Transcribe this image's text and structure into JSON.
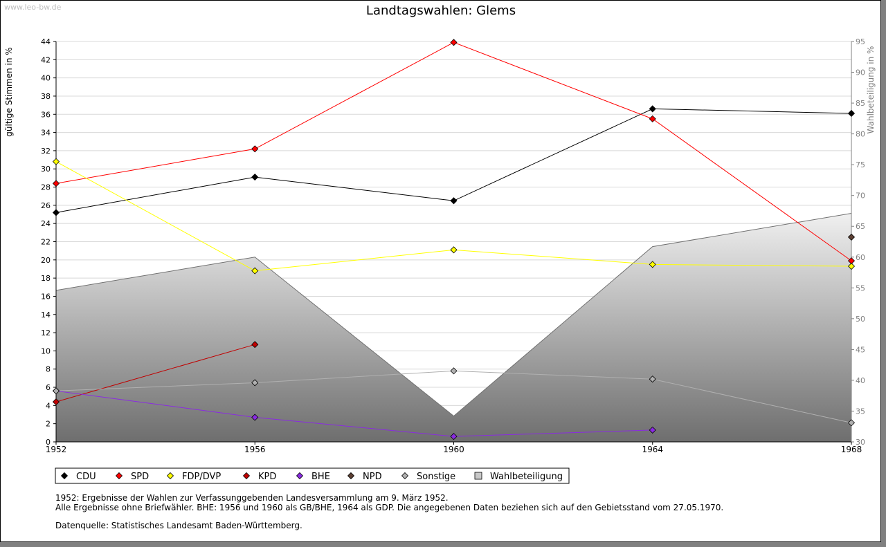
{
  "watermark": "www.leo-bw.de",
  "colors": {
    "cdu": "#000000",
    "spd": "#ff0000",
    "fdp": "#ffff00",
    "kpd": "#c00000",
    "bhe": "#8a2be2",
    "npd": "#5c4033",
    "sonstige": "#b0b0b0",
    "turnout_top": "#f0f0f0",
    "turnout_bottom": "#6e6e6e"
  },
  "chart_data": {
    "type": "line",
    "title": "Landtagswahlen: Glems",
    "ylabel": "gültige Stimmen in %",
    "y2label": "Wahlbeteiligung in %",
    "x": [
      1952,
      1956,
      1960,
      1964,
      1968
    ],
    "xticks": [
      "1952",
      "1956",
      "1960",
      "1964",
      "1968"
    ],
    "ylim": [
      0,
      44
    ],
    "yticks": [
      "0",
      "2",
      "4",
      "6",
      "8",
      "10",
      "12",
      "14",
      "16",
      "18",
      "20",
      "22",
      "24",
      "26",
      "28",
      "30",
      "32",
      "34",
      "36",
      "38",
      "40",
      "42",
      "44"
    ],
    "y2lim": [
      30,
      95
    ],
    "y2ticks": [
      "30",
      "35",
      "40",
      "45",
      "50",
      "55",
      "60",
      "65",
      "70",
      "75",
      "80",
      "85",
      "90",
      "95"
    ],
    "series": [
      {
        "key": "cdu",
        "name": "CDU",
        "values": [
          25.2,
          29.1,
          26.5,
          36.6,
          36.1
        ]
      },
      {
        "key": "spd",
        "name": "SPD",
        "values": [
          28.4,
          32.2,
          43.9,
          35.5,
          19.9
        ]
      },
      {
        "key": "fdp",
        "name": "FDP/DVP",
        "values": [
          30.8,
          18.8,
          21.1,
          19.5,
          19.3
        ]
      },
      {
        "key": "kpd",
        "name": "KPD",
        "values": [
          4.4,
          10.7,
          null,
          null,
          null
        ]
      },
      {
        "key": "bhe",
        "name": "BHE",
        "values": [
          5.6,
          2.7,
          0.6,
          1.3,
          null
        ]
      },
      {
        "key": "npd",
        "name": "NPD",
        "values": [
          null,
          null,
          null,
          null,
          22.5
        ]
      },
      {
        "key": "sonstige",
        "name": "Sonstige",
        "values": [
          5.6,
          6.5,
          7.8,
          6.9,
          2.1
        ]
      }
    ],
    "turnout": {
      "key": "turnout",
      "name": "Wahlbeteiligung",
      "values": [
        54.6,
        60.0,
        34.2,
        61.7,
        67.1
      ]
    },
    "legend": [
      "CDU",
      "SPD",
      "FDP/DVP",
      "KPD",
      "BHE",
      "NPD",
      "Sonstige",
      "Wahlbeteiligung"
    ]
  },
  "notes": {
    "line1": "1952: Ergebnisse der Wahlen zur Verfassunggebenden Landesversammlung am 9. März 1952.",
    "line2": "Alle Ergebnisse ohne Briefwähler. BHE: 1956 und 1960 als GB/BHE, 1964 als GDP. Die angegebenen Daten beziehen sich auf den Gebietsstand vom 27.05.1970.",
    "source": "Datenquelle: Statistisches Landesamt Baden-Württemberg."
  }
}
